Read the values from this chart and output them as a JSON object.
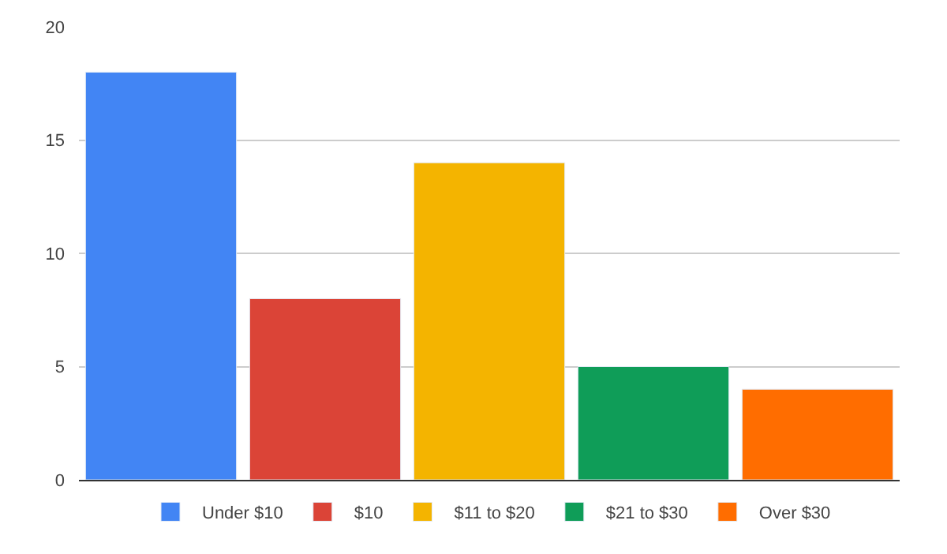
{
  "chart_data": {
    "type": "bar",
    "categories": [
      null,
      null,
      null,
      null,
      null
    ],
    "series": [
      {
        "name": "Under $10",
        "color": "#4285f4",
        "values": [
          18,
          null,
          null,
          null,
          null
        ]
      },
      {
        "name": "$10",
        "color": "#db4437",
        "values": [
          null,
          8,
          null,
          null,
          null
        ]
      },
      {
        "name": "$11 to $20",
        "color": "#f4b400",
        "values": [
          null,
          null,
          14,
          null,
          null
        ]
      },
      {
        "name": "$21 to $30",
        "color": "#0f9d58",
        "values": [
          null,
          null,
          null,
          5,
          null
        ]
      },
      {
        "name": "Over $30",
        "color": "#ff6d00",
        "values": [
          null,
          null,
          null,
          null,
          4
        ]
      }
    ],
    "ylim": [
      0,
      20
    ],
    "yticks": [
      0,
      5,
      10,
      15,
      20
    ],
    "grid": "y",
    "legend": "bottom",
    "tick_labels": "y"
  }
}
